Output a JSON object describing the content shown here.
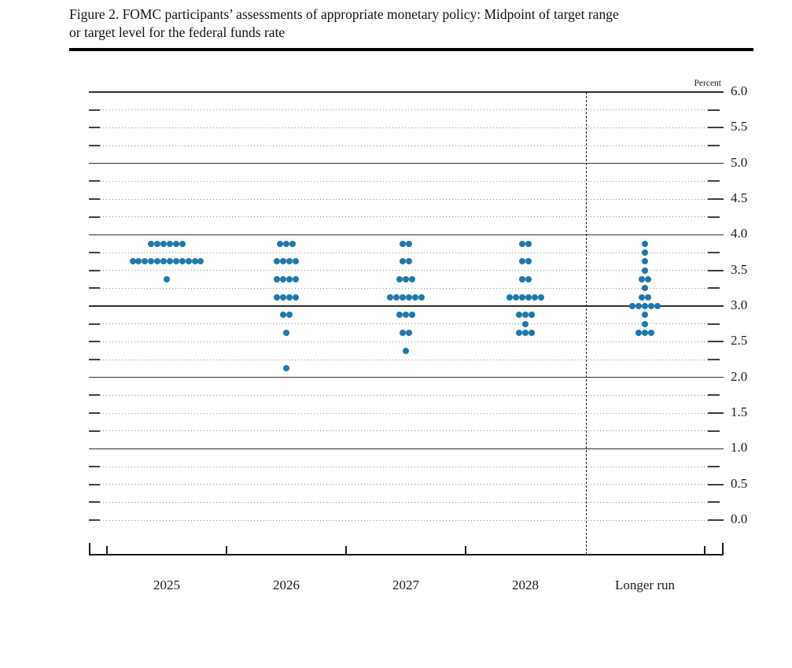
{
  "header": {
    "line1": "Figure 2. FOMC participants’ assessments of appropriate monetary policy: Midpoint of target range",
    "line2": "or target level for the federal funds rate"
  },
  "chart_data": {
    "type": "scatter",
    "subtype": "fomc-dot-plot",
    "title": "Figure 2. FOMC participants’ assessments of appropriate monetary policy: Midpoint of target range or target level for the federal funds rate",
    "unit_label": "Percent",
    "categories": [
      "2025",
      "2026",
      "2027",
      "2028",
      "Longer run"
    ],
    "ylim": [
      0.0,
      6.0
    ],
    "y_grid_step": 0.25,
    "y_tick_values": [
      6.0,
      5.5,
      5.0,
      4.5,
      4.0,
      3.5,
      3.0,
      2.5,
      2.0,
      1.5,
      1.0,
      0.5,
      0.0
    ],
    "y_tick_labels": [
      "6.0",
      "5.5",
      "5.0",
      "4.5",
      "4.0",
      "3.5",
      "3.0",
      "2.5",
      "2.0",
      "1.5",
      "1.0",
      "0.5",
      "0.0"
    ],
    "series": [
      {
        "category": "2025",
        "dots": [
          {
            "rate": 3.875,
            "count": 6
          },
          {
            "rate": 3.625,
            "count": 12
          },
          {
            "rate": 3.375,
            "count": 1
          }
        ]
      },
      {
        "category": "2026",
        "dots": [
          {
            "rate": 3.875,
            "count": 3
          },
          {
            "rate": 3.625,
            "count": 4
          },
          {
            "rate": 3.375,
            "count": 4
          },
          {
            "rate": 3.125,
            "count": 4
          },
          {
            "rate": 2.875,
            "count": 2
          },
          {
            "rate": 2.625,
            "count": 1
          },
          {
            "rate": 2.125,
            "count": 1
          }
        ]
      },
      {
        "category": "2027",
        "dots": [
          {
            "rate": 3.875,
            "count": 2
          },
          {
            "rate": 3.625,
            "count": 2
          },
          {
            "rate": 3.375,
            "count": 3
          },
          {
            "rate": 3.125,
            "count": 6
          },
          {
            "rate": 2.875,
            "count": 3
          },
          {
            "rate": 2.625,
            "count": 2
          },
          {
            "rate": 2.375,
            "count": 1
          }
        ]
      },
      {
        "category": "2028",
        "dots": [
          {
            "rate": 3.875,
            "count": 2
          },
          {
            "rate": 3.625,
            "count": 2
          },
          {
            "rate": 3.375,
            "count": 2
          },
          {
            "rate": 3.125,
            "count": 6
          },
          {
            "rate": 2.875,
            "count": 3
          },
          {
            "rate": 2.75,
            "count": 1
          },
          {
            "rate": 2.625,
            "count": 3
          }
        ]
      },
      {
        "category": "Longer run",
        "dots": [
          {
            "rate": 3.875,
            "count": 1
          },
          {
            "rate": 3.75,
            "count": 1
          },
          {
            "rate": 3.625,
            "count": 1
          },
          {
            "rate": 3.5,
            "count": 1
          },
          {
            "rate": 3.375,
            "count": 2
          },
          {
            "rate": 3.25,
            "count": 1
          },
          {
            "rate": 3.125,
            "count": 2
          },
          {
            "rate": 3.0,
            "count": 5
          },
          {
            "rate": 2.875,
            "count": 1
          },
          {
            "rate": 2.75,
            "count": 1
          },
          {
            "rate": 2.625,
            "count": 3
          }
        ]
      }
    ],
    "style": {
      "dot_color": "#1d78ad",
      "solid_gridline_color": "#2e2e2e",
      "dotted_gridline_color": "#8c8c8c",
      "axis_color": "#1a1a1a",
      "text_color": "#1a1a1a"
    },
    "layout_hints": {
      "grid": "dotted lines every 0.25, solid lines at whole percents 1.0-6.0",
      "y_axis_side": "right",
      "separator": "vertical dashed line between 2028 and Longer run",
      "legend": "none"
    }
  }
}
